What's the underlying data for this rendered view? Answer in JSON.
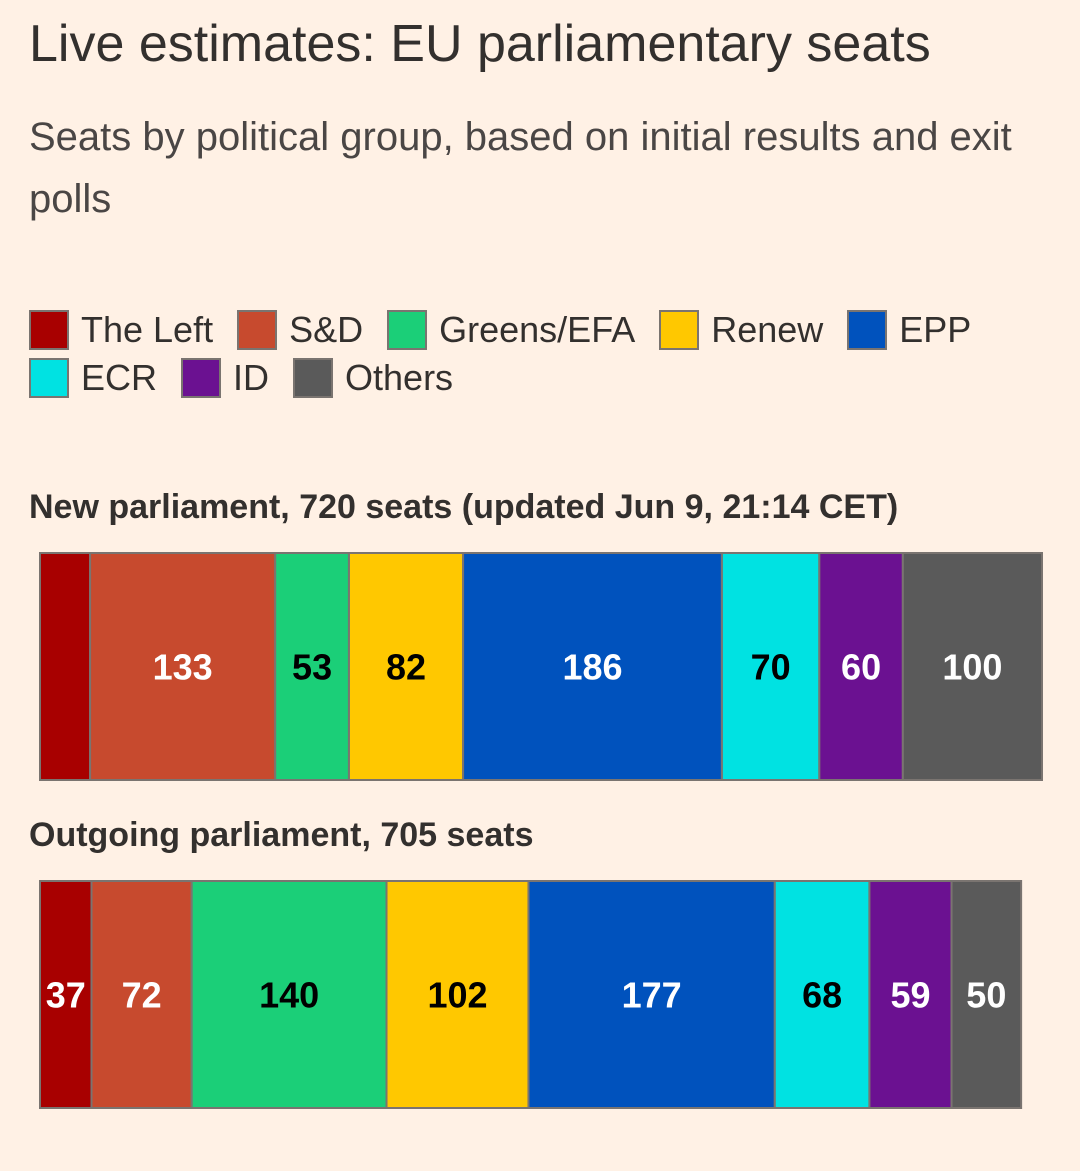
{
  "title": "Live estimates: EU parliamentary seats",
  "subtitle": "Seats by political group, based on initial results and exit polls",
  "legend": {
    "rows": [
      [
        {
          "label": "The Left",
          "color": "#a80000"
        },
        {
          "label": "S&D",
          "color": "#c74a2e"
        },
        {
          "label": "Greens/EFA",
          "color": "#1bcf78"
        },
        {
          "label": "Renew",
          "color": "#ffc800"
        },
        {
          "label": "EPP",
          "color": "#0052bd"
        }
      ],
      [
        {
          "label": "ECR",
          "color": "#00e2e2"
        },
        {
          "label": "ID",
          "color": "#6b1191"
        },
        {
          "label": "Others",
          "color": "#5a5a5a"
        }
      ]
    ]
  },
  "chart_data": [
    {
      "type": "bar",
      "stacked": true,
      "orientation": "horizontal",
      "title": "New parliament, 720 seats (updated Jun 9, 21:14 CET)",
      "total": 720,
      "categories": [
        "The Left",
        "S&D",
        "Greens/EFA",
        "Renew",
        "EPP",
        "ECR",
        "ID",
        "Others"
      ],
      "values": [
        36,
        133,
        53,
        82,
        186,
        70,
        60,
        100
      ],
      "labels": [
        "",
        "133",
        "53",
        "82",
        "186",
        "70",
        "60",
        "100"
      ],
      "colors": [
        "#a80000",
        "#c74a2e",
        "#1bcf78",
        "#ffc800",
        "#0052bd",
        "#00e2e2",
        "#6b1191",
        "#5a5a5a"
      ],
      "label_colors": [
        "#ffffff",
        "#ffffff",
        "#000000",
        "#000000",
        "#ffffff",
        "#000000",
        "#ffffff",
        "#ffffff"
      ]
    },
    {
      "type": "bar",
      "stacked": true,
      "orientation": "horizontal",
      "title": "Outgoing parliament, 705 seats",
      "total": 705,
      "categories": [
        "The Left",
        "S&D",
        "Greens/EFA",
        "Renew",
        "EPP",
        "ECR",
        "ID",
        "Others"
      ],
      "values": [
        37,
        72,
        140,
        102,
        177,
        68,
        59,
        50
      ],
      "labels": [
        "37",
        "72",
        "140",
        "102",
        "177",
        "68",
        "59",
        "50"
      ],
      "colors": [
        "#a80000",
        "#c74a2e",
        "#1bcf78",
        "#ffc800",
        "#0052bd",
        "#00e2e2",
        "#6b1191",
        "#5a5a5a"
      ],
      "label_colors": [
        "#ffffff",
        "#ffffff",
        "#000000",
        "#000000",
        "#ffffff",
        "#000000",
        "#ffffff",
        "#ffffff"
      ]
    }
  ]
}
